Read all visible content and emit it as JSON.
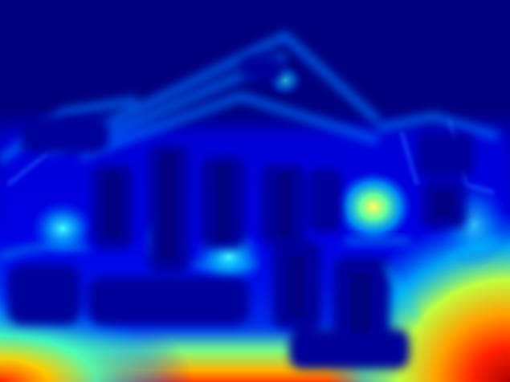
{
  "image": {
    "kind": "distance-transform heatmap of a building facade",
    "colormap": "jet",
    "colors": {
      "background": "#00007f",
      "deep_blue": "#0000c8",
      "blue": "#0000ff",
      "azure": "#0080ff",
      "cyan": "#00ffff",
      "yellow": "#ffff00",
      "orange": "#ff8000",
      "red": "#ff0000",
      "dark_red": "#b40000"
    }
  }
}
